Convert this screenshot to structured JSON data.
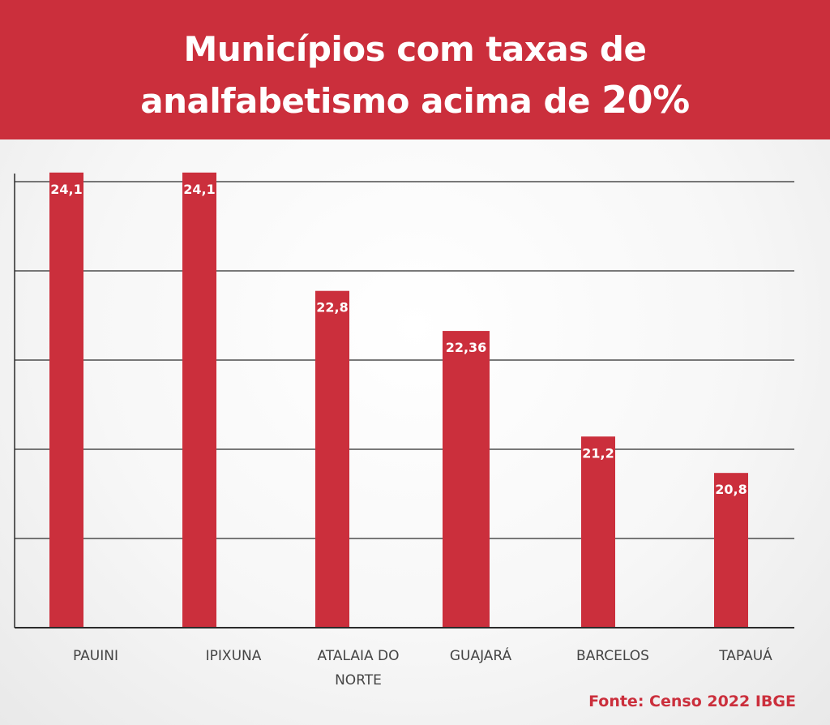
{
  "header": {
    "title_line1": "Municípios com taxas de",
    "title_line2": "analfabetismo acima de",
    "title_pct": "20%"
  },
  "source": "Fonte: Censo 2022 IBGE",
  "colors": {
    "accent": "#cb2f3c",
    "grid": "#2b2b2b",
    "label": "#444444"
  },
  "chart_data": {
    "type": "bar",
    "title": "Municípios com taxas de analfabetismo acima de 20%",
    "categories": [
      [
        "PAUINI"
      ],
      [
        "IPIXUNA"
      ],
      [
        "ATALAIA DO",
        "NORTE"
      ],
      [
        "GUAJARÁ"
      ],
      [
        "BARCELOS"
      ],
      [
        "TAPAUÁ"
      ]
    ],
    "values": [
      24.1,
      24.1,
      22.8,
      22.36,
      21.2,
      20.8
    ],
    "value_labels": [
      "24,1",
      "24,1",
      "22,8",
      "22,36",
      "21,2",
      "20,8"
    ],
    "ylim": [
      19.1,
      24.0
    ],
    "gridlines": 5,
    "grid": true,
    "legend": "none"
  }
}
